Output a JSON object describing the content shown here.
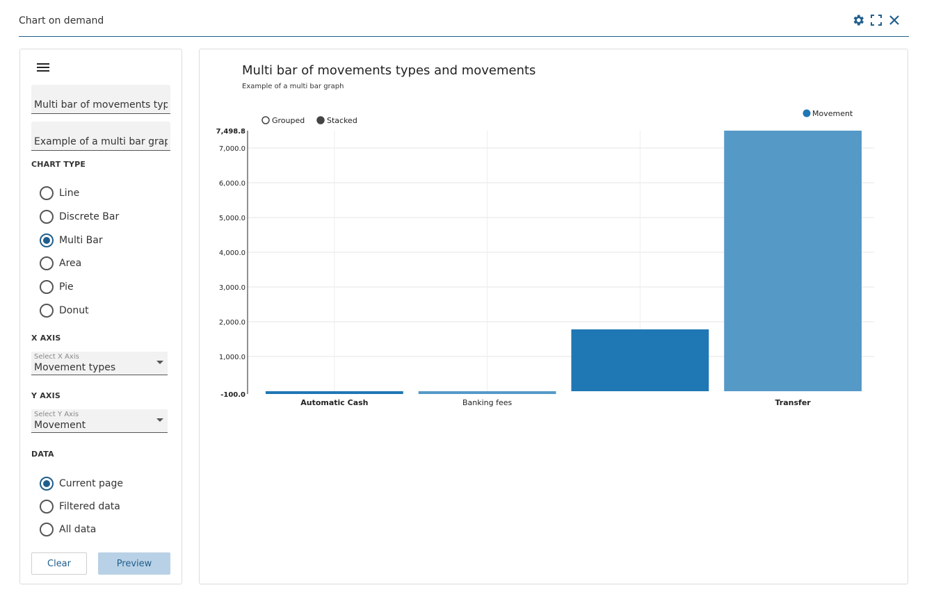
{
  "app": {
    "title": "Chart on demand",
    "icons": [
      "gear-icon",
      "fullscreen-icon",
      "close-icon"
    ]
  },
  "colors": {
    "accent": "#1f5e8c",
    "bar_primary": "#1f77b4",
    "bar_light": "#5599c7",
    "preview_bg": "#b9d1e6"
  },
  "config": {
    "title_value": "Multi bar of movements types and movements",
    "subtitle_value": "Example of a multi bar graph",
    "chart_type_label": "CHART TYPE",
    "chart_types": [
      {
        "label": "Line",
        "checked": false
      },
      {
        "label": "Discrete Bar",
        "checked": false
      },
      {
        "label": "Multi Bar",
        "checked": true
      },
      {
        "label": "Area",
        "checked": false
      },
      {
        "label": "Pie",
        "checked": false
      },
      {
        "label": "Donut",
        "checked": false
      }
    ],
    "x_axis_label": "X AXIS",
    "x_axis_hint": "Select X Axis",
    "x_axis_value": "Movement types",
    "y_axis_label": "Y AXIS",
    "y_axis_hint": "Select Y Axis",
    "y_axis_value": "Movement",
    "data_label": "DATA",
    "data_options": [
      {
        "label": "Current page",
        "checked": true
      },
      {
        "label": "Filtered data",
        "checked": false
      },
      {
        "label": "All data",
        "checked": false
      }
    ],
    "clear_label": "Clear",
    "preview_label": "Preview"
  },
  "chart": {
    "title": "Multi bar of movements types and movements",
    "subtitle": "Example of a multi bar graph",
    "controls": [
      {
        "label": "Grouped",
        "selected": false
      },
      {
        "label": "Stacked",
        "selected": true
      }
    ]
  },
  "chart_data": {
    "type": "bar",
    "categories": [
      "Automatic Cash",
      "Banking fees",
      "",
      "Transfer"
    ],
    "series": [
      {
        "name": "Movement",
        "values": [
          -100,
          -70,
          1780,
          7498.8
        ]
      }
    ],
    "ylim": [
      -100,
      7498.8
    ],
    "yticks": [
      1000,
      2000,
      3000,
      4000,
      5000,
      6000,
      7000
    ],
    "ytick_labels": [
      "1,000.0",
      "2,000.0",
      "3,000.0",
      "4,000.0",
      "5,000.0",
      "6,000.0",
      "7,000.0"
    ],
    "ymin_label": "-100.0",
    "ymax_label": "7,498.8",
    "xlabel": "",
    "ylabel": "",
    "legend": "top-right",
    "grid": true
  }
}
